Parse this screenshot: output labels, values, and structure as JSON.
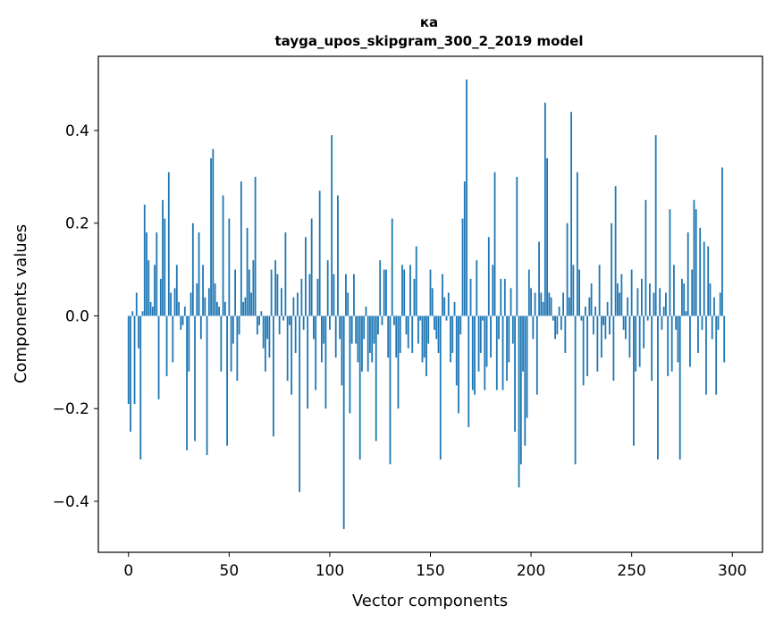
{
  "chart_data": {
    "type": "bar",
    "title_lines": [
      "ка",
      "tayga_upos_skipgram_300_2_2019 model"
    ],
    "xlabel": "Vector components",
    "ylabel": "Components values",
    "xlim": [
      -15,
      315
    ],
    "ylim": [
      -0.51,
      0.56
    ],
    "xticks": [
      0,
      50,
      100,
      150,
      200,
      250,
      300
    ],
    "xtick_labels": [
      "0",
      "50",
      "100",
      "150",
      "200",
      "250",
      "300"
    ],
    "yticks": [
      -0.4,
      -0.2,
      0.0,
      0.2,
      0.4
    ],
    "ytick_labels": [
      "−0.4",
      "−0.2",
      "0.0",
      "0.2",
      "0.4"
    ],
    "grid": false,
    "bar_color": "#1f77b4",
    "bar_width": 0.8,
    "values": [
      -0.19,
      -0.25,
      0.01,
      -0.19,
      0.05,
      -0.07,
      -0.31,
      0.01,
      0.24,
      0.18,
      0.12,
      0.03,
      0.02,
      0.11,
      0.18,
      -0.18,
      0.08,
      0.25,
      0.21,
      -0.13,
      0.31,
      0.05,
      -0.1,
      0.06,
      0.11,
      0.03,
      -0.03,
      -0.02,
      0.02,
      -0.29,
      -0.12,
      0.05,
      0.2,
      -0.27,
      0.07,
      0.18,
      -0.05,
      0.11,
      0.04,
      -0.3,
      0.06,
      0.34,
      0.36,
      0.07,
      0.03,
      0.02,
      -0.12,
      0.26,
      0.03,
      -0.28,
      0.21,
      -0.12,
      -0.06,
      0.1,
      -0.14,
      -0.04,
      0.29,
      0.03,
      0.04,
      0.19,
      0.1,
      0.05,
      0.12,
      0.3,
      -0.04,
      -0.02,
      0.01,
      -0.07,
      -0.12,
      -0.05,
      -0.09,
      0.1,
      -0.26,
      0.12,
      0.09,
      -0.04,
      0.06,
      -0.01,
      0.18,
      -0.14,
      -0.02,
      -0.17,
      0.04,
      -0.08,
      0.05,
      -0.38,
      0.08,
      -0.03,
      0.17,
      -0.2,
      0.09,
      0.21,
      -0.05,
      -0.16,
      0.08,
      0.27,
      -0.1,
      -0.06,
      -0.2,
      0.12,
      -0.03,
      0.39,
      0.09,
      -0.09,
      0.26,
      -0.05,
      -0.15,
      -0.46,
      0.09,
      0.05,
      -0.21,
      -0.06,
      0.09,
      -0.06,
      -0.1,
      -0.31,
      -0.12,
      -0.05,
      0.02,
      -0.12,
      -0.08,
      -0.1,
      -0.06,
      -0.27,
      -0.04,
      0.12,
      -0.02,
      0.1,
      0.1,
      -0.09,
      -0.32,
      0.21,
      -0.02,
      -0.09,
      -0.2,
      -0.08,
      0.11,
      0.1,
      -0.04,
      -0.07,
      0.11,
      -0.08,
      0.08,
      0.15,
      -0.06,
      -0.01,
      -0.1,
      -0.09,
      -0.13,
      -0.06,
      0.1,
      0.06,
      -0.03,
      -0.05,
      -0.08,
      -0.31,
      0.09,
      0.04,
      -0.01,
      0.05,
      -0.1,
      -0.08,
      0.03,
      -0.15,
      -0.21,
      -0.04,
      0.21,
      0.29,
      0.51,
      -0.24,
      0.08,
      -0.16,
      -0.17,
      0.12,
      -0.12,
      -0.08,
      -0.01,
      -0.16,
      -0.11,
      0.17,
      -0.09,
      0.11,
      0.31,
      -0.16,
      -0.05,
      0.08,
      -0.16,
      0.08,
      -0.14,
      -0.1,
      0.06,
      -0.06,
      -0.25,
      0.3,
      -0.37,
      -0.32,
      -0.12,
      -0.28,
      -0.22,
      0.1,
      0.06,
      -0.05,
      0.05,
      -0.17,
      0.16,
      0.05,
      0.03,
      0.46,
      0.34,
      0.05,
      0.04,
      -0.01,
      -0.05,
      -0.04,
      0.02,
      -0.03,
      0.05,
      -0.08,
      0.2,
      0.04,
      0.44,
      0.11,
      -0.32,
      0.31,
      0.1,
      -0.01,
      -0.15,
      0.02,
      -0.13,
      0.04,
      0.07,
      -0.04,
      0.02,
      -0.12,
      0.11,
      -0.09,
      -0.02,
      -0.05,
      0.03,
      -0.04,
      0.2,
      -0.14,
      0.28,
      0.07,
      0.05,
      0.09,
      -0.03,
      -0.05,
      0.04,
      -0.09,
      0.1,
      -0.28,
      -0.12,
      0.06,
      -0.11,
      0.08,
      -0.07,
      0.25,
      -0.01,
      0.07,
      -0.14,
      0.05,
      0.39,
      -0.31,
      0.06,
      -0.03,
      0.02,
      0.05,
      -0.13,
      0.23,
      -0.12,
      0.11,
      -0.03,
      -0.1,
      -0.31,
      0.08,
      0.07,
      0.01,
      0.18,
      -0.11,
      0.1,
      0.25,
      0.23,
      -0.08,
      0.19,
      -0.03,
      0.16,
      -0.17,
      0.15,
      0.07,
      -0.05,
      0.04,
      -0.17,
      -0.03,
      0.05,
      0.32,
      -0.1
    ]
  }
}
